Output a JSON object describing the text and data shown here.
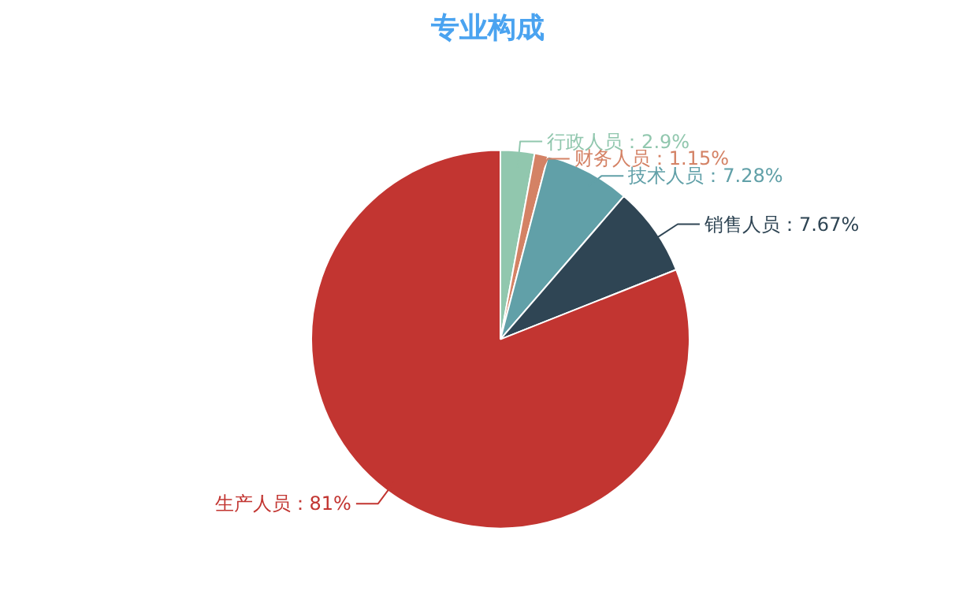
{
  "chart_data": {
    "type": "pie",
    "title": "专业构成",
    "categories": [
      "行政人员",
      "财务人员",
      "技术人员",
      "销售人员",
      "生产人员"
    ],
    "values": [
      2.9,
      1.15,
      7.28,
      7.67,
      81
    ],
    "value_labels": [
      "：2.9%",
      "：1.15%",
      "：7.28%",
      "：7.67%",
      "：81%"
    ],
    "colors": [
      "#91c7ae",
      "#d48265",
      "#61a0a8",
      "#2f4554",
      "#c23531"
    ],
    "legend": false
  }
}
